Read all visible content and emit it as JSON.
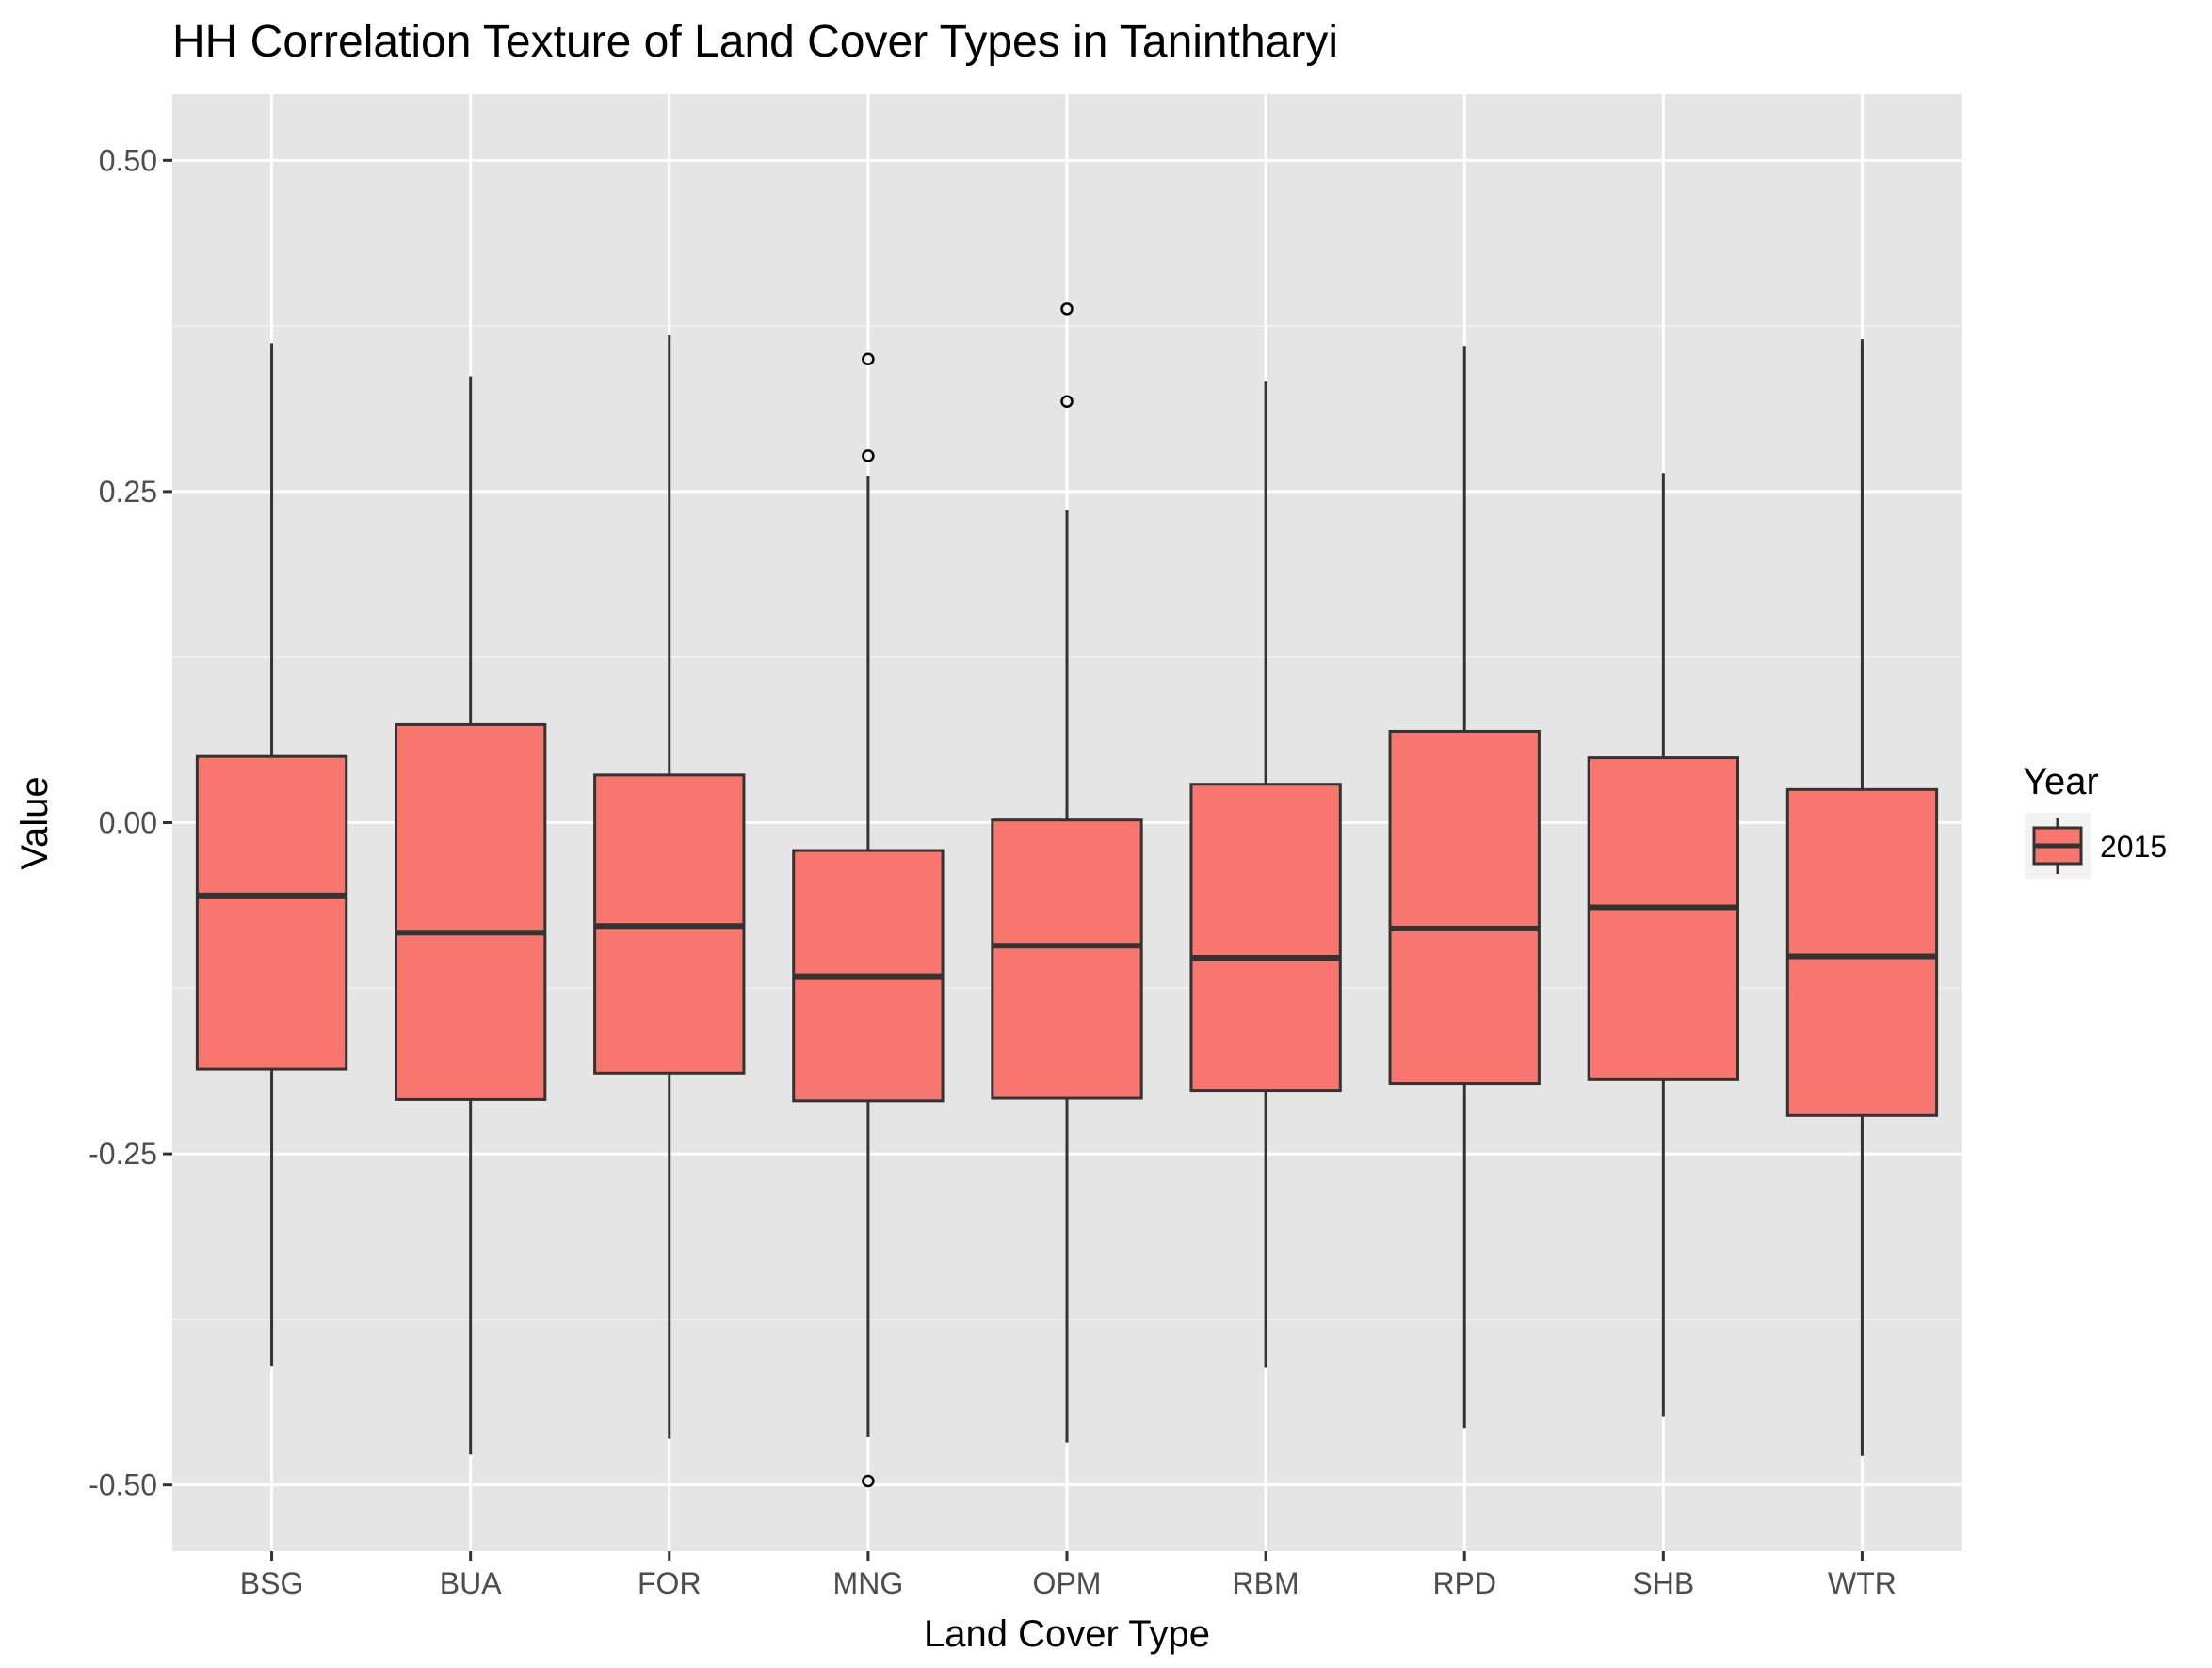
{
  "chart_data": {
    "type": "boxplot",
    "title": "HH Correlation Texture of Land Cover Types in Tanintharyi",
    "xlabel": "Land Cover Type",
    "ylabel": "Value",
    "ylim": [
      -0.55,
      0.55
    ],
    "yticks": [
      -0.5,
      -0.25,
      0.0,
      0.25,
      0.5
    ],
    "ytick_labels": [
      "-0.50",
      "-0.25",
      "0.00",
      "0.25",
      "0.50"
    ],
    "grid": true,
    "legend": {
      "title": "Year",
      "position": "right"
    },
    "series": [
      {
        "name": "2015",
        "color": "#F8766D",
        "boxes": [
          {
            "category": "BSG",
            "whisker_low": -0.41,
            "q1": -0.186,
            "median": -0.055,
            "q3": 0.05,
            "whisker_high": 0.362,
            "outliers": []
          },
          {
            "category": "BUA",
            "whisker_low": -0.477,
            "q1": -0.209,
            "median": -0.083,
            "q3": 0.074,
            "whisker_high": 0.337,
            "outliers": []
          },
          {
            "category": "FOR",
            "whisker_low": -0.465,
            "q1": -0.189,
            "median": -0.078,
            "q3": 0.036,
            "whisker_high": 0.368,
            "outliers": []
          },
          {
            "category": "MNG",
            "whisker_low": -0.464,
            "q1": -0.21,
            "median": -0.116,
            "q3": -0.021,
            "whisker_high": 0.262,
            "outliers": [
              0.35,
              0.277,
              -0.497
            ]
          },
          {
            "category": "OPM",
            "whisker_low": -0.468,
            "q1": -0.208,
            "median": -0.093,
            "q3": 0.002,
            "whisker_high": 0.236,
            "outliers": [
              0.388,
              0.318
            ]
          },
          {
            "category": "RBM",
            "whisker_low": -0.411,
            "q1": -0.202,
            "median": -0.102,
            "q3": 0.029,
            "whisker_high": 0.333,
            "outliers": []
          },
          {
            "category": "RPD",
            "whisker_low": -0.457,
            "q1": -0.197,
            "median": -0.08,
            "q3": 0.069,
            "whisker_high": 0.36,
            "outliers": []
          },
          {
            "category": "SHB",
            "whisker_low": -0.448,
            "q1": -0.194,
            "median": -0.064,
            "q3": 0.049,
            "whisker_high": 0.264,
            "outliers": []
          },
          {
            "category": "WTR",
            "whisker_low": -0.478,
            "q1": -0.221,
            "median": -0.101,
            "q3": 0.025,
            "whisker_high": 0.365,
            "outliers": []
          }
        ]
      }
    ]
  }
}
